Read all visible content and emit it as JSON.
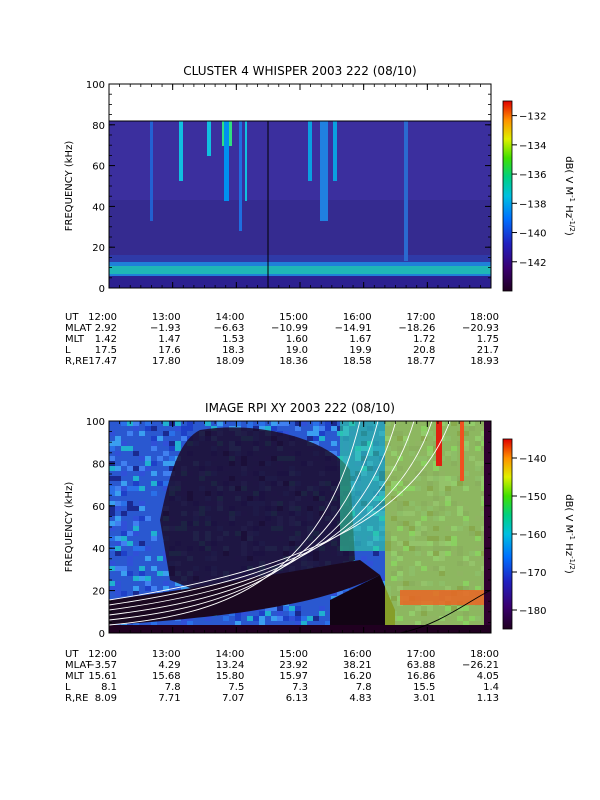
{
  "chart_data": [
    {
      "type": "heatmap",
      "title": "CLUSTER 4 WHISPER 2003 222 (08/10)",
      "xlabel": "",
      "ylabel": "FREQUENCY (kHz)",
      "xlim": [
        12,
        18
      ],
      "ylim": [
        0,
        100
      ],
      "xticks": [
        "12:00",
        "13:00",
        "14:00",
        "15:00",
        "16:00",
        "17:00",
        "18:00"
      ],
      "yticks": [
        "0",
        "20",
        "40",
        "60",
        "80",
        "100"
      ],
      "data_ceiling_khz": 80,
      "colorbar": {
        "label": "dB( V M⁻¹ Hz⁻¹ᐟ²)",
        "label_parts": [
          "dB( V M",
          "-1",
          " Hz",
          "-1/2",
          ")"
        ],
        "range": [
          -144,
          -131
        ],
        "ticks": [
          "-132",
          "-134",
          "-136",
          "-138",
          "-140",
          "-142"
        ]
      },
      "orbit_table": {
        "row_labels": [
          "UT",
          "MLAT",
          "MLT",
          "L",
          "R,RE"
        ],
        "rows": [
          [
            "12:00",
            "13:00",
            "14:00",
            "15:00",
            "16:00",
            "17:00",
            "18:00"
          ],
          [
            "2.92",
            "−1.93",
            "−6.63",
            "−10.99",
            "−14.91",
            "−18.26",
            "−20.93"
          ],
          [
            "1.42",
            "1.47",
            "1.53",
            "1.60",
            "1.67",
            "1.72",
            "1.75"
          ],
          [
            "17.5",
            "17.6",
            "18.3",
            "19.0",
            "19.9",
            "20.8",
            "21.7"
          ],
          [
            "17.47",
            "17.80",
            "18.09",
            "18.36",
            "18.58",
            "18.77",
            "18.93"
          ]
        ]
      }
    },
    {
      "type": "heatmap",
      "title": "IMAGE RPI XY 2003 222 (08/10)",
      "xlabel": "",
      "ylabel": "FREQUENCY (kHz)",
      "xlim": [
        12,
        18
      ],
      "ylim": [
        0,
        100
      ],
      "xticks": [
        "12:00",
        "13:00",
        "14:00",
        "15:00",
        "16:00",
        "17:00",
        "18:00"
      ],
      "yticks": [
        "0",
        "20",
        "40",
        "60",
        "80",
        "100"
      ],
      "colorbar": {
        "label_parts": [
          "dB( V M",
          "-1",
          " Hz",
          "-1/2",
          ")"
        ],
        "range": [
          -185,
          -135
        ],
        "ticks": [
          "-140",
          "-150",
          "-160",
          "-170",
          "-180"
        ]
      },
      "orbit_table": {
        "row_labels": [
          "UT",
          "MLAT",
          "MLT",
          "L",
          "R,RE"
        ],
        "rows": [
          [
            "12:00",
            "13:00",
            "14:00",
            "15:00",
            "16:00",
            "17:00",
            "18:00"
          ],
          [
            "−3.57",
            "4.29",
            "13.24",
            "23.92",
            "38.21",
            "63.88",
            "−26.21"
          ],
          [
            "15.61",
            "15.68",
            "15.80",
            "15.97",
            "16.20",
            "16.86",
            "4.05"
          ],
          [
            "8.1",
            "7.8",
            "7.5",
            "7.3",
            "7.8",
            "15.5",
            "1.4"
          ],
          [
            "8.09",
            "7.71",
            "7.07",
            "6.13",
            "4.83",
            "3.01",
            "1.13"
          ]
        ]
      },
      "overlay_curves": {
        "color": "#ffffff",
        "count": 6
      }
    }
  ],
  "colors": {
    "background": "#ffffff",
    "axis": "#000000",
    "curve": "#ffffff"
  }
}
